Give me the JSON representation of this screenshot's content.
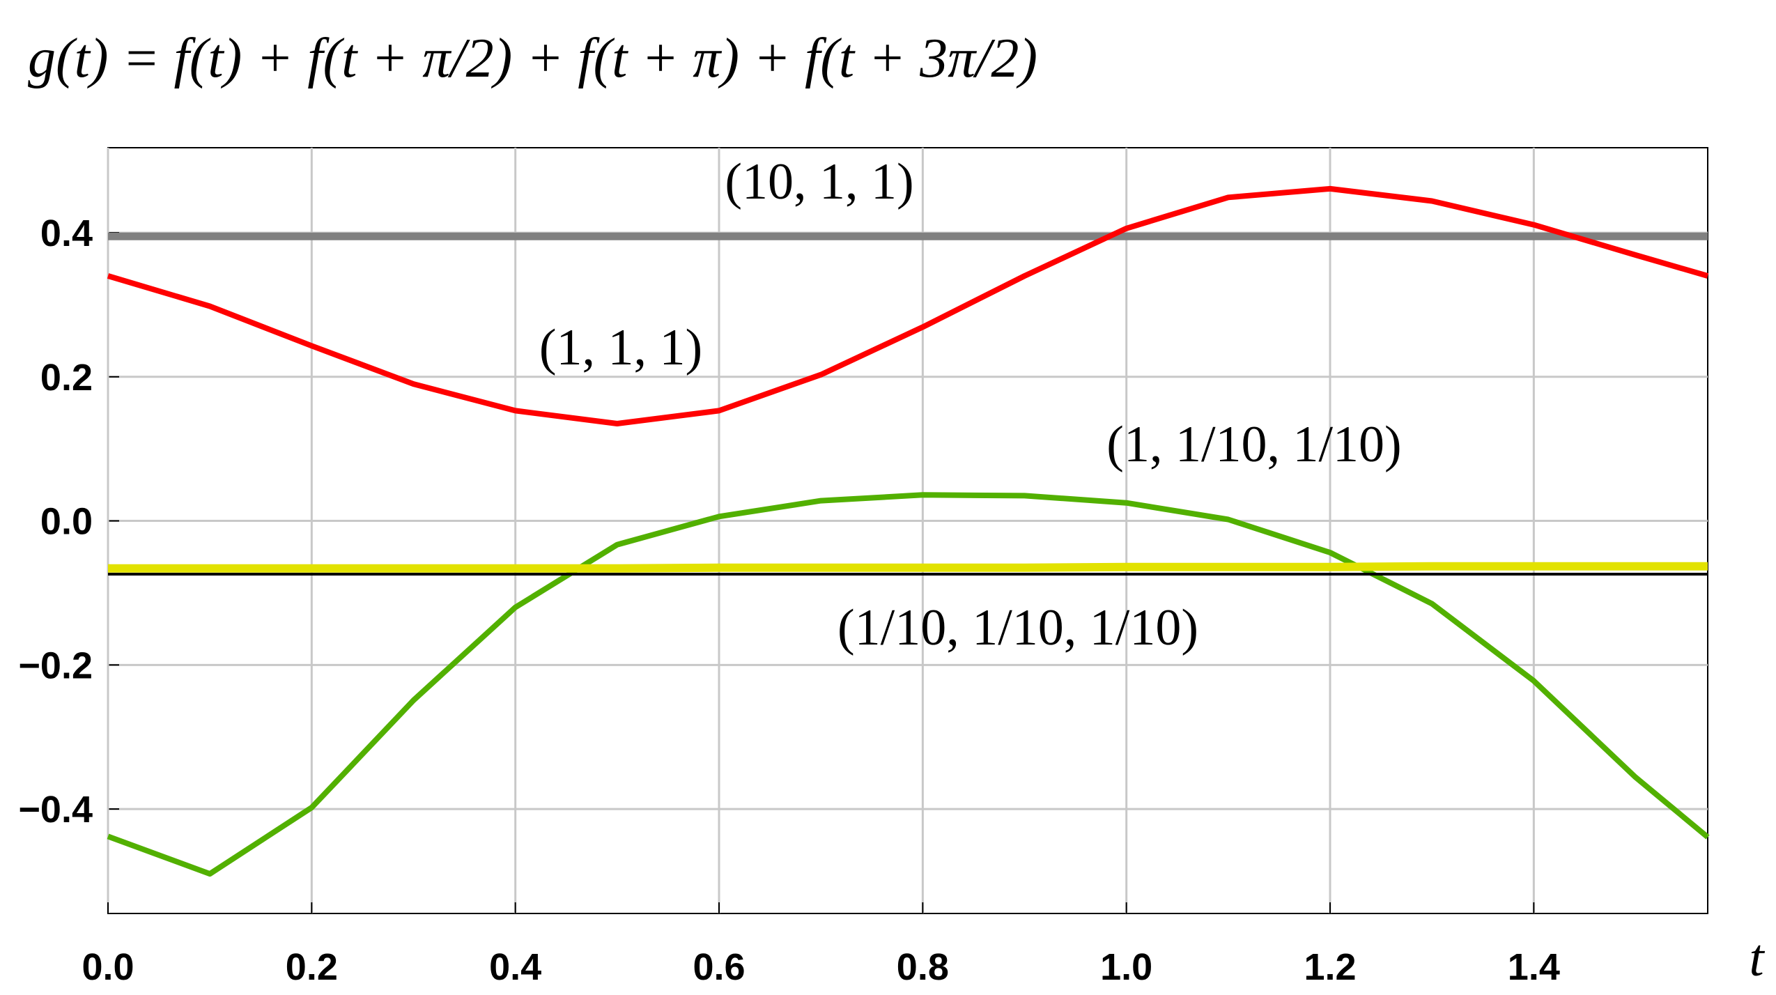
{
  "chart_data": {
    "type": "line",
    "title": "g(t) = f(t) + f(t + π/2) + f(t + π) + f(t + 3π/2)",
    "x_label": "t",
    "x": [
      0,
      0.1,
      0.2,
      0.3,
      0.4,
      0.5,
      0.6,
      0.7,
      0.8,
      0.9,
      1.0,
      1.1,
      1.2,
      1.3,
      1.4,
      1.5,
      1.5708
    ],
    "series": [
      {
        "name": "(10, 1, 1)",
        "color": "#808080",
        "values": [
          0.395,
          0.395,
          0.395,
          0.395,
          0.395,
          0.395,
          0.395,
          0.395,
          0.395,
          0.395,
          0.395,
          0.395,
          0.395,
          0.395,
          0.395,
          0.395,
          0.395
        ]
      },
      {
        "name": "(1, 1, 1)",
        "color": "#ff0000",
        "values": [
          0.34,
          0.298,
          0.243,
          0.19,
          0.153,
          0.135,
          0.153,
          0.203,
          0.269,
          0.34,
          0.406,
          0.449,
          0.461,
          0.444,
          0.411,
          0.369,
          0.34
        ]
      },
      {
        "name": "(1, 1/10, 1/10)",
        "color": "#52b000",
        "values": [
          -0.438,
          -0.49,
          -0.398,
          -0.249,
          -0.12,
          -0.033,
          0.006,
          0.028,
          0.036,
          0.035,
          0.025,
          0.002,
          -0.044,
          -0.115,
          -0.222,
          -0.356,
          -0.439
        ]
      },
      {
        "name": "(1/10, 1/10, 1/10)",
        "color": "#e2e200",
        "values": [
          -0.066,
          -0.066,
          -0.066,
          -0.066,
          -0.066,
          -0.066,
          -0.065,
          -0.065,
          -0.065,
          -0.065,
          -0.064,
          -0.064,
          -0.064,
          -0.063,
          -0.063,
          -0.063,
          -0.063
        ]
      }
    ],
    "reference_line": {
      "value": -0.074,
      "color": "#000000"
    },
    "xlim": [
      0,
      1.5708
    ],
    "ylim": [
      -0.545,
      0.518
    ],
    "xticks": [
      {
        "value": 0,
        "label": "0.0"
      },
      0.2,
      0.4,
      0.6,
      0.8,
      {
        "value": 1,
        "label": "1.0"
      },
      1.2,
      1.4
    ],
    "yticks": [
      {
        "value": -0.4,
        "label": "−0.4"
      },
      {
        "value": -0.2,
        "label": "−0.2"
      },
      {
        "value": 0,
        "label": "0.0"
      },
      0.2,
      0.4
    ],
    "grid": true
  }
}
